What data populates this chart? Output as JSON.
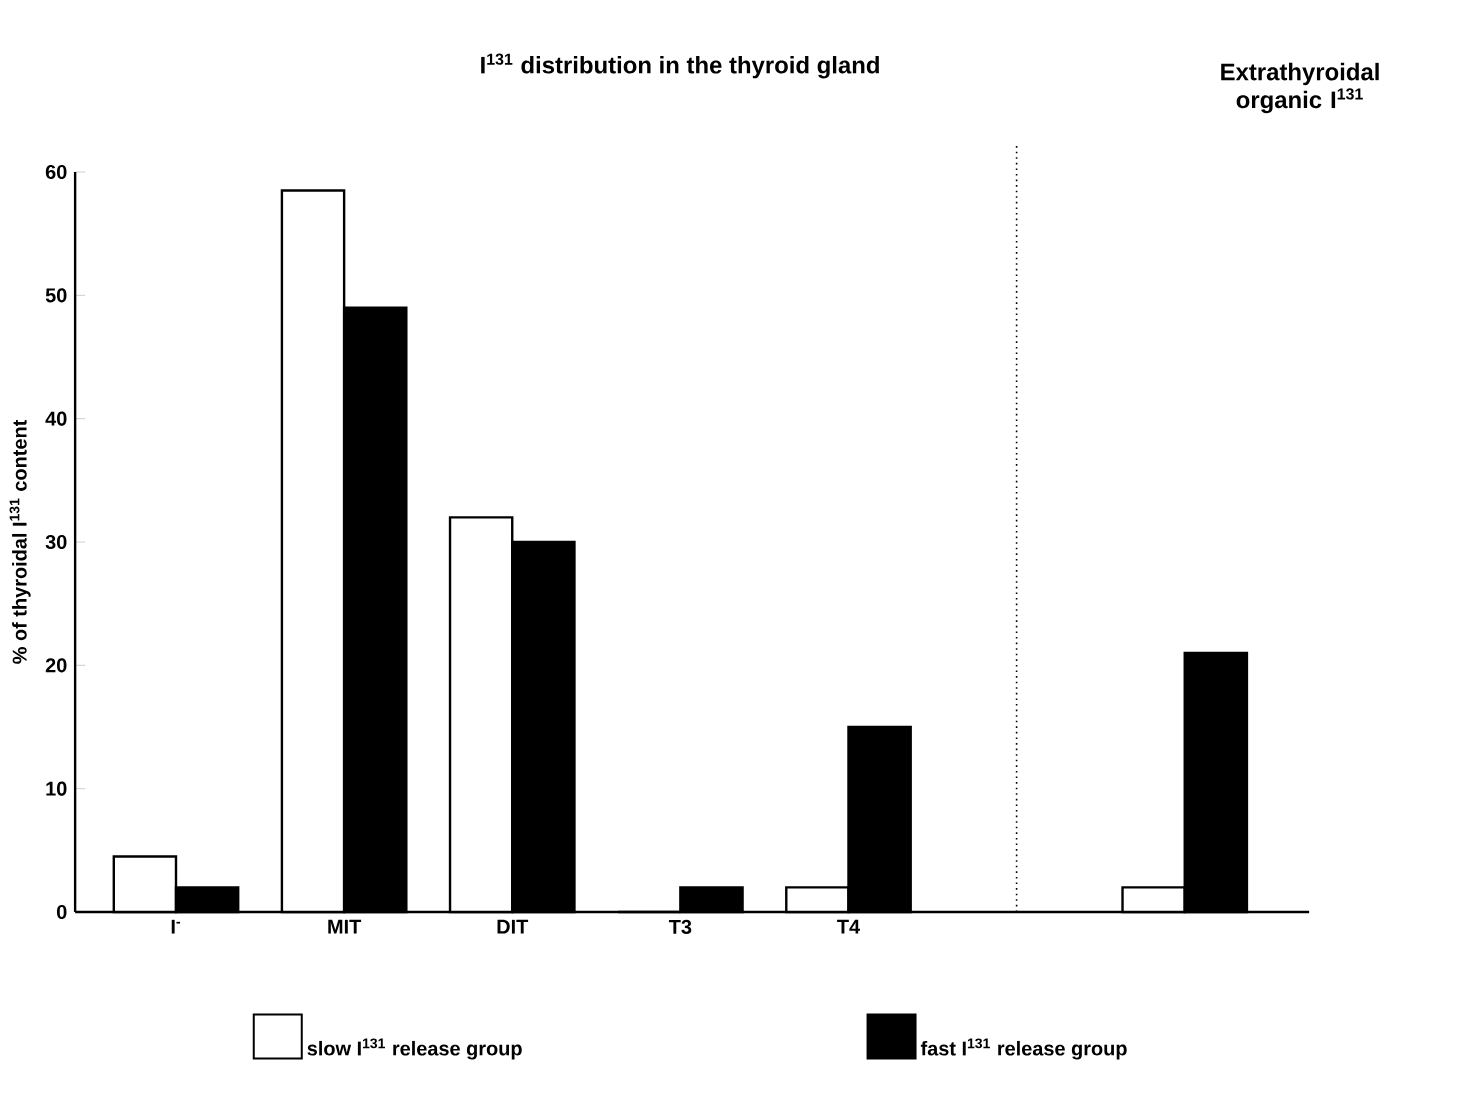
{
  "chart_data": {
    "type": "bar",
    "title": "I$^{131}$ distribution in the thyroid gland",
    "annotations": [
      "Extrathyroidal organic I$^{131}$"
    ],
    "ylabel": "% of thyroidal I$^{131}$ content",
    "categories": [
      "I$^{-}$",
      "MIT",
      "DIT",
      "T3",
      "T4",
      null,
      null
    ],
    "series": [
      {
        "name": "slow I$^{131}$ release group",
        "color": "#ffffff",
        "values": [
          4.5,
          58.5,
          32,
          0,
          2,
          null,
          2
        ]
      },
      {
        "name": "fast I$^{131}$ release group",
        "color": "#000000",
        "values": [
          2,
          49,
          30,
          2,
          15,
          null,
          21
        ]
      }
    ],
    "ylim": [
      0,
      60
    ],
    "yticks": [
      0,
      10,
      20,
      30,
      40,
      50,
      60
    ],
    "legend": "bottom"
  }
}
